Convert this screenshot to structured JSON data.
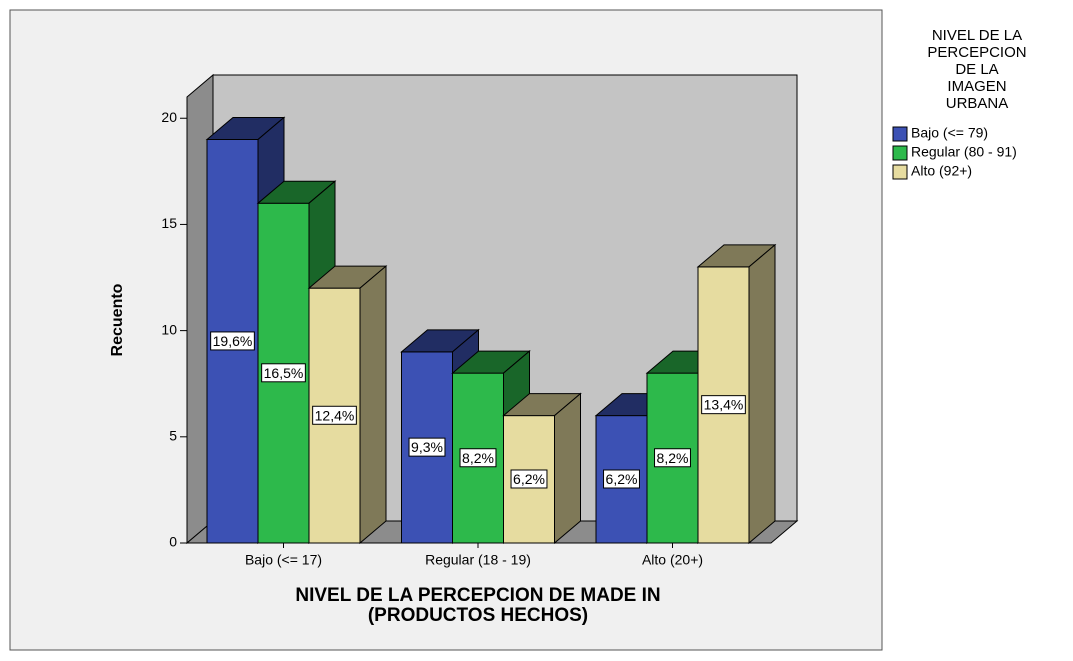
{
  "chart_data": {
    "type": "bar3d",
    "categories": [
      "Bajo (<= 17)",
      "Regular (18 - 19)",
      "Alto (20+)"
    ],
    "series": [
      {
        "name": "Bajo (<= 79)",
        "color": "#3c51b4",
        "values": [
          19,
          9,
          6
        ],
        "percent_values": [
          19.6,
          9.3,
          6.2
        ],
        "percent_labels": [
          "19,6%",
          "9,3%",
          "6,2%"
        ]
      },
      {
        "name": "Regular (80 - 91)",
        "color": "#2db94b",
        "values": [
          16,
          8,
          8
        ],
        "percent_values": [
          16.5,
          8.2,
          8.2
        ],
        "percent_labels": [
          "16,5%",
          "8,2%",
          "8,2%"
        ]
      },
      {
        "name": "Alto (92+)",
        "color": "#e6dca0",
        "values": [
          12,
          6,
          13
        ],
        "percent_values": [
          12.4,
          6.2,
          13.4
        ],
        "percent_labels": [
          "12,4%",
          "6,2%",
          "13,4%"
        ]
      }
    ],
    "ylim": [
      0,
      21
    ],
    "yticks": [
      0,
      5,
      10,
      15,
      20
    ],
    "y_label": "Recuento",
    "x_label": [
      "NIVEL DE LA PERCEPCION DE MADE IN",
      "(PRODUCTOS HECHOS)"
    ],
    "legend_title": [
      "NIVEL DE LA",
      "PERCEPCION",
      "DE LA",
      "IMAGEN",
      "URBANA"
    ],
    "legend_position": "right"
  }
}
